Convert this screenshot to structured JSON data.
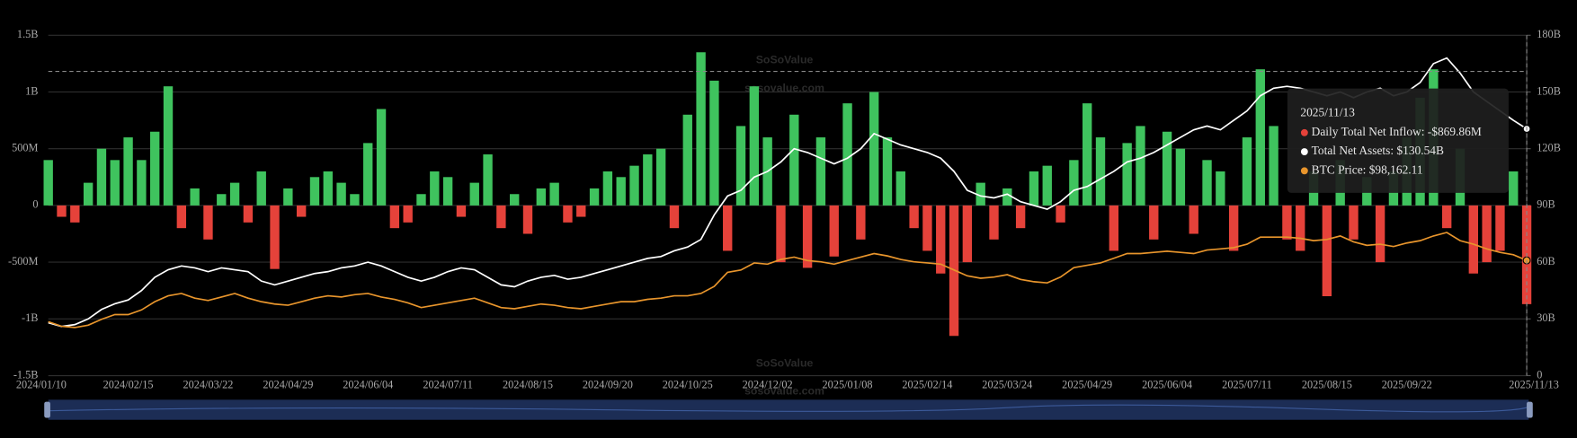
{
  "chart_data": {
    "type": "bar_line",
    "watermark": {
      "brand": "SoSoValue",
      "site": "sosovalue.com"
    },
    "categories": [
      "2024/01/10",
      null,
      null,
      null,
      null,
      null,
      "2024/02/15",
      null,
      null,
      null,
      null,
      null,
      "2024/03/22",
      null,
      null,
      null,
      null,
      null,
      "2024/04/29",
      null,
      null,
      null,
      null,
      null,
      "2024/06/04",
      null,
      null,
      null,
      null,
      null,
      "2024/07/11",
      null,
      null,
      null,
      null,
      null,
      "2024/08/15",
      null,
      null,
      null,
      null,
      null,
      "2024/09/20",
      null,
      null,
      null,
      null,
      null,
      "2024/10/25",
      null,
      null,
      null,
      null,
      null,
      "2024/12/02",
      null,
      null,
      null,
      null,
      null,
      "2025/01/08",
      null,
      null,
      null,
      null,
      null,
      "2025/02/14",
      null,
      null,
      null,
      null,
      null,
      "2025/03/24",
      null,
      null,
      null,
      null,
      null,
      "2025/04/29",
      null,
      null,
      null,
      null,
      null,
      "2025/06/04",
      null,
      null,
      null,
      null,
      null,
      "2025/07/11",
      null,
      null,
      null,
      null,
      null,
      "2025/08/15",
      null,
      null,
      null,
      null,
      null,
      "2025/09/22",
      null,
      null,
      null,
      null,
      null,
      null,
      null,
      null,
      "2025/11/13"
    ],
    "series": [
      {
        "name": "Daily Total Net Inflow",
        "type": "bar",
        "color": "#3fc35e",
        "negative_color": "#e5423a",
        "axis": "y",
        "values": [
          400,
          -100,
          -150,
          200,
          500,
          400,
          600,
          400,
          650,
          1050,
          -200,
          150,
          -300,
          100,
          200,
          -150,
          300,
          -560,
          150,
          -100,
          250,
          300,
          200,
          100,
          550,
          850,
          -200,
          -150,
          100,
          300,
          250,
          -100,
          200,
          450,
          -200,
          100,
          -250,
          150,
          200,
          -150,
          -100,
          150,
          300,
          250,
          350,
          450,
          500,
          -200,
          800,
          1350,
          1100,
          -400,
          700,
          1050,
          600,
          -500,
          800,
          -550,
          600,
          -450,
          900,
          -300,
          1000,
          600,
          300,
          -200,
          -400,
          -600,
          -1150,
          -500,
          200,
          -300,
          150,
          -200,
          300,
          350,
          -150,
          400,
          900,
          600,
          -400,
          550,
          700,
          -300,
          650,
          500,
          -250,
          400,
          300,
          -400,
          600,
          1200,
          700,
          -300,
          -400,
          300,
          -800,
          400,
          -300,
          250,
          -500,
          300,
          600,
          950,
          1200,
          -200,
          500,
          -600,
          -500,
          -400,
          300,
          -869.86
        ]
      },
      {
        "name": "Total Net Assets",
        "type": "line",
        "color": "#ffffff",
        "axis": "y2",
        "values": [
          28,
          26,
          27,
          30,
          35,
          38,
          40,
          45,
          52,
          56,
          58,
          57,
          55,
          57,
          56,
          55,
          50,
          48,
          50,
          52,
          54,
          55,
          57,
          58,
          60,
          58,
          55,
          52,
          50,
          52,
          55,
          57,
          56,
          52,
          48,
          47,
          50,
          52,
          53,
          51,
          52,
          54,
          56,
          58,
          60,
          62,
          63,
          66,
          68,
          72,
          85,
          95,
          98,
          105,
          108,
          113,
          120,
          118,
          115,
          112,
          115,
          120,
          128,
          125,
          122,
          120,
          118,
          115,
          108,
          98,
          95,
          94,
          96,
          92,
          90,
          88,
          92,
          98,
          100,
          104,
          108,
          113,
          115,
          118,
          122,
          126,
          130,
          132,
          130,
          135,
          140,
          148,
          152,
          153,
          152,
          150,
          148,
          150,
          147,
          150,
          152,
          148,
          150,
          155,
          165,
          168,
          160,
          150,
          145,
          140,
          135,
          130.54
        ]
      },
      {
        "name": "BTC Price",
        "type": "line",
        "color": "#e8952c",
        "axis": "y3",
        "values": [
          46000,
          42000,
          41000,
          43000,
          48000,
          52000,
          52000,
          56000,
          63000,
          68000,
          70000,
          66000,
          64000,
          67000,
          70000,
          66000,
          63000,
          61000,
          60000,
          63000,
          66000,
          68000,
          67000,
          69000,
          70000,
          67000,
          65000,
          62000,
          58000,
          60000,
          62000,
          64000,
          66000,
          62000,
          58000,
          57000,
          59000,
          61000,
          60000,
          58000,
          57000,
          59000,
          61000,
          63000,
          63000,
          65000,
          66000,
          68000,
          68000,
          70000,
          76000,
          88000,
          90000,
          96000,
          95000,
          99000,
          101000,
          98000,
          97000,
          95000,
          98000,
          101000,
          104000,
          102000,
          99000,
          97000,
          96000,
          95000,
          90000,
          85000,
          83000,
          84000,
          86000,
          82000,
          80000,
          79000,
          84000,
          92000,
          94000,
          96000,
          100000,
          104000,
          104000,
          105000,
          106000,
          105000,
          104000,
          107000,
          108000,
          109000,
          112000,
          118000,
          118000,
          118000,
          117000,
          115000,
          116000,
          119000,
          114000,
          111000,
          112000,
          110000,
          113000,
          115000,
          119000,
          122000,
          115000,
          112000,
          108000,
          105000,
          103000,
          98162.11
        ]
      }
    ],
    "ylim": [
      -1500,
      1500
    ],
    "yticks": [
      {
        "value": -1500,
        "label": "-1.5B"
      },
      {
        "value": -1000,
        "label": "-1B"
      },
      {
        "value": -500,
        "label": "-500M"
      },
      0,
      {
        "value": 500,
        "label": "500M"
      },
      {
        "value": 1000,
        "label": "1B"
      },
      {
        "value": 1500,
        "label": "1.5B"
      }
    ],
    "y2lim": [
      0,
      180
    ],
    "y2ticks": [
      0,
      {
        "value": 30,
        "label": "30B"
      },
      {
        "value": 60,
        "label": "60B"
      },
      {
        "value": 90,
        "label": "90B"
      },
      {
        "value": 120,
        "label": "120B"
      },
      {
        "value": 150,
        "label": "150B"
      },
      {
        "value": 180,
        "label": "180B"
      }
    ],
    "y3lim": [
      0,
      290000
    ],
    "grid": true,
    "tooltip": {
      "date": "2025/11/13",
      "items": [
        {
          "text": "Daily Total Net Inflow: -$869.86M",
          "color": "#e5423a"
        },
        {
          "text": "Total Net Assets: $130.54B",
          "color": "#ffffff"
        },
        {
          "text": "BTC Price: $98,162.11",
          "color": "#e8952c"
        }
      ]
    }
  }
}
